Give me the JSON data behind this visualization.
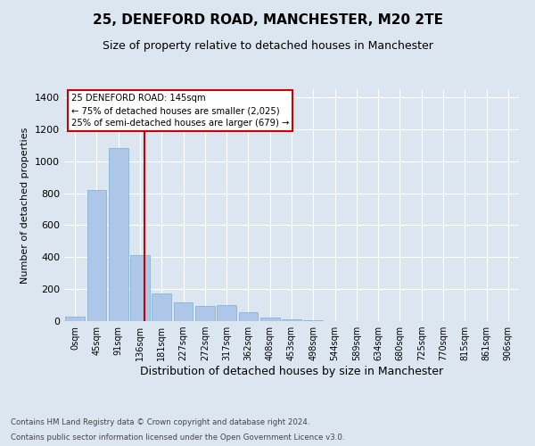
{
  "title1": "25, DENEFORD ROAD, MANCHESTER, M20 2TE",
  "title2": "Size of property relative to detached houses in Manchester",
  "xlabel": "Distribution of detached houses by size in Manchester",
  "ylabel": "Number of detached properties",
  "bin_labels": [
    "0sqm",
    "45sqm",
    "91sqm",
    "136sqm",
    "181sqm",
    "227sqm",
    "272sqm",
    "317sqm",
    "362sqm",
    "408sqm",
    "453sqm",
    "498sqm",
    "544sqm",
    "589sqm",
    "634sqm",
    "680sqm",
    "725sqm",
    "770sqm",
    "815sqm",
    "861sqm",
    "906sqm"
  ],
  "bar_heights": [
    30,
    820,
    1080,
    415,
    175,
    115,
    95,
    100,
    55,
    25,
    10,
    5,
    0,
    0,
    0,
    0,
    0,
    0,
    0,
    0,
    0
  ],
  "bar_color": "#aec6e8",
  "bar_edge_color": "#7bafd4",
  "vline_color": "#cc0000",
  "ylim": [
    0,
    1450
  ],
  "yticks": [
    0,
    200,
    400,
    600,
    800,
    1000,
    1200,
    1400
  ],
  "annotation_title": "25 DENEFORD ROAD: 145sqm",
  "annotation_line1": "← 75% of detached houses are smaller (2,025)",
  "annotation_line2": "25% of semi-detached houses are larger (679) →",
  "annotation_box_color": "#ffffff",
  "annotation_box_edge": "#cc0000",
  "footer1": "Contains HM Land Registry data © Crown copyright and database right 2024.",
  "footer2": "Contains public sector information licensed under the Open Government Licence v3.0.",
  "bg_color": "#dce6f0",
  "plot_bg_color": "#dce6f0",
  "grid_color": "#ffffff",
  "title1_fontsize": 11,
  "title2_fontsize": 9
}
